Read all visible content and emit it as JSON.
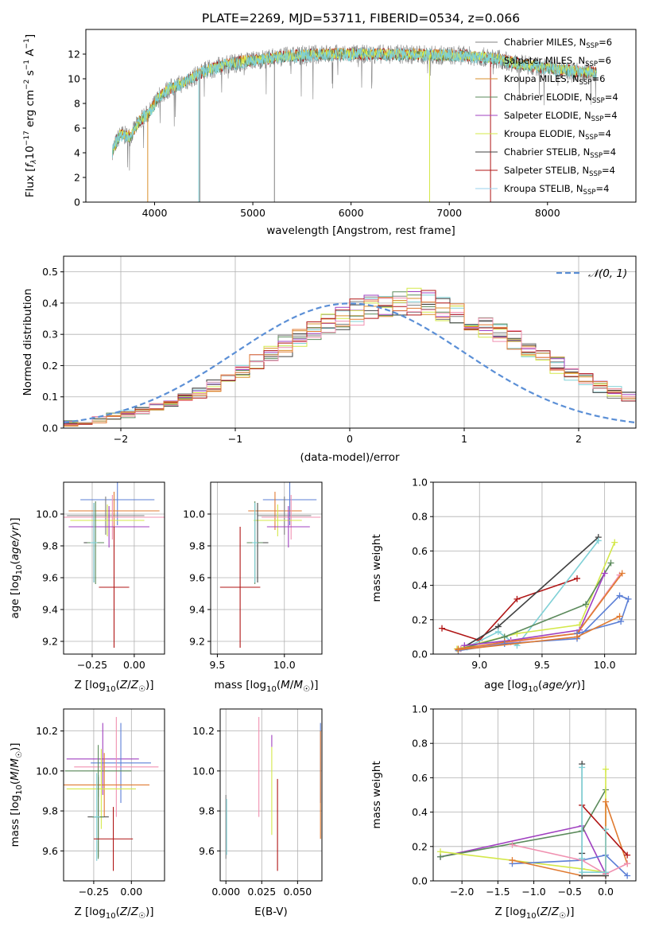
{
  "colors": {
    "chabrier_miles": "#808080",
    "salpeter_miles": "#7fd0d6",
    "kroupa_miles": "#d98f2b",
    "chabrier_elodie": "#5b8a5b",
    "salpeter_elodie": "#a040c0",
    "kroupa_elodie": "#d4e84a",
    "chabrier_stelib": "#404040",
    "salpeter_stelib": "#b01515",
    "kroupa_stelib": "#9ad0ee",
    "extra_blue": "#5b7fd6",
    "extra_pink": "#f090b0",
    "extra_orange": "#e07a30",
    "normal_curve": "#5b8fd6"
  },
  "chart_data": [
    {
      "id": "spectrum",
      "type": "line",
      "title": "PLATE=2269, MJD=53711, FIBERID=0534, z=0.066",
      "xlabel": "wavelength [Angstrom, rest frame]",
      "ylabel": "Flux [f_λ 10^-17 erg cm^-2 s^-1 A^-1]",
      "xlim": [
        3300,
        8900
      ],
      "ylim": [
        0,
        14
      ],
      "xticks": [
        "4000",
        "5000",
        "6000",
        "7000",
        "8000"
      ],
      "yticks": [
        "0",
        "2",
        "4",
        "6",
        "8",
        "10",
        "12"
      ],
      "grid": false,
      "legend_position": "top-right",
      "legend": [
        {
          "label": "Chabrier MILES, N",
          "sub": "SSP",
          "suffix": "=6"
        },
        {
          "label": "Salpeter MILES, N",
          "sub": "SSP",
          "suffix": "=6"
        },
        {
          "label": "Kroupa MILES, N",
          "sub": "SSP",
          "suffix": "=6"
        },
        {
          "label": "Chabrier ELODIE, N",
          "sub": "SSP",
          "suffix": "=4"
        },
        {
          "label": "Salpeter ELODIE, N",
          "sub": "SSP",
          "suffix": "=4"
        },
        {
          "label": "Kroupa ELODIE, N",
          "sub": "SSP",
          "suffix": "=4"
        },
        {
          "label": "Chabrier STELIB, N",
          "sub": "SSP",
          "suffix": "=4"
        },
        {
          "label": "Salpeter STELIB, N",
          "sub": "SSP",
          "suffix": "=4"
        },
        {
          "label": "Kroupa STELIB, N",
          "sub": "SSP",
          "suffix": "=4"
        }
      ],
      "continuum": {
        "x": [
          3570,
          3650,
          3750,
          3850,
          3950,
          4050,
          4150,
          4300,
          4500,
          4700,
          4900,
          5100,
          5300,
          5500,
          5700,
          5900,
          6100,
          6300,
          6500,
          6700,
          6900,
          7100,
          7300,
          7500,
          7700,
          7900,
          8100,
          8300,
          8500
        ],
        "y": [
          4.2,
          5.5,
          5.3,
          6.6,
          7.3,
          8.6,
          9.2,
          9.7,
          10.6,
          11.1,
          11.4,
          11.6,
          11.8,
          11.9,
          12.0,
          12.0,
          12.0,
          12.0,
          12.0,
          11.95,
          11.9,
          11.9,
          11.8,
          11.6,
          11.2,
          11.0,
          10.8,
          10.6,
          10.5
        ]
      }
    },
    {
      "id": "residuals",
      "type": "histogram",
      "xlabel": "(data-model)/error",
      "ylabel": "Normed distribution",
      "xlim": [
        -2.5,
        2.5
      ],
      "ylim": [
        0,
        0.55
      ],
      "xticks": [
        "−2",
        "−1",
        "0",
        "1",
        "2"
      ],
      "yticks": [
        "0.0",
        "0.1",
        "0.2",
        "0.3",
        "0.4",
        "0.5"
      ],
      "grid": true,
      "legend_position": "top-right",
      "legend": [
        {
          "label": "𝒩(0, 1)"
        }
      ],
      "bin_width": 0.125,
      "bin_start": -2.5,
      "base_values": [
        0.018,
        0.022,
        0.028,
        0.036,
        0.045,
        0.056,
        0.068,
        0.082,
        0.098,
        0.117,
        0.137,
        0.16,
        0.185,
        0.21,
        0.236,
        0.262,
        0.288,
        0.313,
        0.336,
        0.356,
        0.373,
        0.386,
        0.395,
        0.399,
        0.398,
        0.393,
        0.383,
        0.368,
        0.35,
        0.328,
        0.305,
        0.28,
        0.254,
        0.228,
        0.203,
        0.179,
        0.156,
        0.135,
        0.116,
        0.099,
        0.084,
        0.071,
        0.059,
        0.049,
        0.04,
        0.033,
        0.027,
        0.022,
        0.018,
        0.015
      ],
      "normal": {
        "mean": 0,
        "sd": 1
      }
    },
    {
      "id": "age_vs_Z",
      "type": "errorbar",
      "xlabel": "Z [log10(Z/Z☉)]",
      "ylabel": "age [log10(age/yr)]",
      "xlim": [
        -0.42,
        0.18
      ],
      "ylim": [
        9.12,
        10.2
      ],
      "xticks": [
        "−0.25",
        "0.00"
      ],
      "yticks": [
        "9.2",
        "9.4",
        "9.6",
        "9.8",
        "10.0"
      ],
      "grid": true,
      "points": [
        {
          "x": -0.1,
          "y": 10.09,
          "xerr": 0.22,
          "yerr": 0.16,
          "color": "extra_blue"
        },
        {
          "x": -0.12,
          "y": 10.02,
          "xerr": 0.27,
          "yerr": 0.12,
          "color": "extra_orange"
        },
        {
          "x": -0.17,
          "y": 9.99,
          "xerr": 0.23,
          "yerr": 0.12,
          "color": "chabrier_miles"
        },
        {
          "x": -0.13,
          "y": 9.98,
          "xerr": 0.32,
          "yerr": 0.14,
          "color": "extra_pink"
        },
        {
          "x": -0.16,
          "y": 9.96,
          "xerr": 0.22,
          "yerr": 0.1,
          "color": "kroupa_elodie"
        },
        {
          "x": -0.15,
          "y": 9.92,
          "xerr": 0.24,
          "yerr": 0.13,
          "color": "salpeter_elodie"
        },
        {
          "x": -0.24,
          "y": 9.82,
          "xerr": 0.06,
          "yerr": 0.25,
          "color": "chabrier_stelib"
        },
        {
          "x": -0.23,
          "y": 9.82,
          "xerr": 0.05,
          "yerr": 0.26,
          "color": "chabrier_elodie"
        },
        {
          "x": -0.24,
          "y": 9.82,
          "xerr": 0.02,
          "yerr": 0.25,
          "color": "salpeter_miles"
        },
        {
          "x": -0.12,
          "y": 9.54,
          "xerr": 0.09,
          "yerr": 0.38,
          "color": "salpeter_stelib"
        }
      ]
    },
    {
      "id": "age_vs_mass",
      "type": "errorbar",
      "xlabel": "mass [log10(M/M☉)]",
      "ylabel": "",
      "xlim": [
        9.45,
        10.28
      ],
      "ylim": [
        9.12,
        10.2
      ],
      "xticks": [
        "9.5",
        "10.0"
      ],
      "yticks": [
        "9.2",
        "9.4",
        "9.6",
        "9.8",
        "10.0"
      ],
      "grid": true,
      "points": [
        {
          "x": 10.04,
          "y": 10.09,
          "xerr": 0.2,
          "yerr": 0.16,
          "color": "extra_blue"
        },
        {
          "x": 9.93,
          "y": 10.02,
          "xerr": 0.2,
          "yerr": 0.12,
          "color": "extra_orange"
        },
        {
          "x": 10.0,
          "y": 9.99,
          "xerr": 0.2,
          "yerr": 0.12,
          "color": "chabrier_miles"
        },
        {
          "x": 10.05,
          "y": 9.98,
          "xerr": 0.22,
          "yerr": 0.14,
          "color": "extra_pink"
        },
        {
          "x": 9.95,
          "y": 9.96,
          "xerr": 0.18,
          "yerr": 0.1,
          "color": "kroupa_elodie"
        },
        {
          "x": 10.03,
          "y": 9.92,
          "xerr": 0.16,
          "yerr": 0.13,
          "color": "salpeter_elodie"
        },
        {
          "x": 9.8,
          "y": 9.82,
          "xerr": 0.08,
          "yerr": 0.25,
          "color": "chabrier_stelib"
        },
        {
          "x": 9.78,
          "y": 9.82,
          "xerr": 0.06,
          "yerr": 0.26,
          "color": "chabrier_elodie"
        },
        {
          "x": 9.78,
          "y": 9.82,
          "xerr": 0.02,
          "yerr": 0.25,
          "color": "salpeter_miles"
        },
        {
          "x": 9.67,
          "y": 9.54,
          "xerr": 0.15,
          "yerr": 0.38,
          "color": "salpeter_stelib"
        }
      ]
    },
    {
      "id": "weight_vs_age",
      "type": "line",
      "xlabel": "age [log10(age/yr)]",
      "ylabel": "mass weight",
      "xlim": [
        8.63,
        10.25
      ],
      "ylim": [
        0,
        1
      ],
      "xticks": [
        "9.0",
        "9.5",
        "10.0"
      ],
      "yticks": [
        "0.0",
        "0.2",
        "0.4",
        "0.6",
        "0.8",
        "1.0"
      ],
      "grid": true,
      "series": [
        {
          "color": "salpeter_stelib",
          "x": [
            8.7,
            9.0,
            9.3,
            9.78
          ],
          "y": [
            0.15,
            0.08,
            0.32,
            0.44
          ]
        },
        {
          "color": "chabrier_stelib",
          "x": [
            8.85,
            9.15,
            9.95
          ],
          "y": [
            0.03,
            0.16,
            0.68
          ]
        },
        {
          "color": "salpeter_miles",
          "x": [
            8.9,
            9.15,
            9.3,
            9.95
          ],
          "y": [
            0.04,
            0.13,
            0.05,
            0.66
          ]
        },
        {
          "color": "kroupa_elodie",
          "x": [
            8.82,
            9.3,
            9.8,
            10.08
          ],
          "y": [
            0.03,
            0.12,
            0.17,
            0.65
          ]
        },
        {
          "color": "chabrier_elodie",
          "x": [
            8.85,
            9.2,
            9.85,
            10.05
          ],
          "y": [
            0.03,
            0.1,
            0.29,
            0.53
          ]
        },
        {
          "color": "salpeter_elodie",
          "x": [
            8.88,
            9.25,
            9.8,
            10.0
          ],
          "y": [
            0.05,
            0.08,
            0.14,
            0.47
          ]
        },
        {
          "color": "extra_pink",
          "x": [
            8.85,
            9.25,
            9.78,
            10.12
          ],
          "y": [
            0.03,
            0.07,
            0.12,
            0.46
          ]
        },
        {
          "color": "extra_orange",
          "x": [
            8.83,
            9.2,
            9.78,
            10.14
          ],
          "y": [
            0.03,
            0.07,
            0.12,
            0.47
          ]
        },
        {
          "color": "extra_blue",
          "x": [
            8.83,
            9.2,
            9.78,
            10.12,
            10.19,
            10.13,
            9.78
          ],
          "y": [
            0.02,
            0.06,
            0.09,
            0.34,
            0.32,
            0.19,
            0.12
          ]
        },
        {
          "color": "extra_orange",
          "x": [
            8.83,
            9.78,
            10.12
          ],
          "y": [
            0.025,
            0.1,
            0.22
          ]
        }
      ]
    },
    {
      "id": "mass_vs_Z",
      "type": "errorbar",
      "xlabel": "Z [log10(Z/Z☉)]",
      "ylabel": "mass [log10(M/M☉)]",
      "xlim": [
        -0.45,
        0.22
      ],
      "ylim": [
        9.45,
        10.31
      ],
      "xticks": [
        "−0.25",
        "0.00"
      ],
      "yticks": [
        "9.6",
        "9.8",
        "10.0",
        "10.2"
      ],
      "grid": true,
      "points": [
        {
          "x": -0.19,
          "y": 10.06,
          "xerr": 0.24,
          "yerr": 0.18,
          "color": "salpeter_elodie"
        },
        {
          "x": -0.07,
          "y": 10.04,
          "xerr": 0.2,
          "yerr": 0.2,
          "color": "extra_blue"
        },
        {
          "x": -0.1,
          "y": 10.02,
          "xerr": 0.28,
          "yerr": 0.25,
          "color": "extra_pink"
        },
        {
          "x": -0.22,
          "y": 10.0,
          "xerr": 0.22,
          "yerr": 0.13,
          "color": "chabrier_elodie"
        },
        {
          "x": -0.18,
          "y": 9.93,
          "xerr": 0.3,
          "yerr": 0.16,
          "color": "extra_orange"
        },
        {
          "x": -0.2,
          "y": 9.91,
          "xerr": 0.23,
          "yerr": 0.2,
          "color": "kroupa_elodie"
        },
        {
          "x": -0.22,
          "y": 9.77,
          "xerr": 0.07,
          "yerr": 0.2,
          "color": "chabrier_stelib"
        },
        {
          "x": -0.22,
          "y": 9.77,
          "xerr": 0.04,
          "yerr": 0.21,
          "color": "chabrier_elodie"
        },
        {
          "x": -0.23,
          "y": 9.77,
          "xerr": 0.02,
          "yerr": 0.22,
          "color": "salpeter_miles"
        },
        {
          "x": -0.12,
          "y": 9.66,
          "xerr": 0.13,
          "yerr": 0.16,
          "color": "salpeter_stelib"
        }
      ]
    },
    {
      "id": "mass_vs_ebv",
      "type": "errorbar",
      "xlabel": "E(B-V)",
      "ylabel": "",
      "xlim": [
        -0.004,
        0.067
      ],
      "ylim": [
        9.45,
        10.31
      ],
      "xticks": [
        "0.000",
        "0.025",
        "0.050"
      ],
      "yticks": [
        "9.6",
        "9.8",
        "10.0",
        "10.2"
      ],
      "grid": true,
      "points": [
        {
          "x": 0.0,
          "y": 9.72,
          "xerr": 0,
          "yerr": 0.16,
          "color": "chabrier_miles"
        },
        {
          "x": 0.0005,
          "y": 9.72,
          "xerr": 0,
          "yerr": 0.14,
          "color": "salpeter_miles"
        },
        {
          "x": 0.023,
          "y": 10.02,
          "xerr": 0,
          "yerr": 0.25,
          "color": "extra_pink"
        },
        {
          "x": 0.032,
          "y": 10.15,
          "xerr": 0,
          "yerr": 0.03,
          "color": "salpeter_elodie"
        },
        {
          "x": 0.032,
          "y": 9.9,
          "xerr": 0,
          "yerr": 0.22,
          "color": "kroupa_elodie"
        },
        {
          "x": 0.036,
          "y": 9.73,
          "xerr": 0,
          "yerr": 0.23,
          "color": "salpeter_stelib"
        },
        {
          "x": 0.066,
          "y": 10.04,
          "xerr": 0,
          "yerr": 0.2,
          "color": "extra_blue"
        },
        {
          "x": 0.066,
          "y": 9.93,
          "xerr": 0,
          "yerr": 0.27,
          "color": "extra_orange"
        }
      ]
    },
    {
      "id": "weight_vs_Z",
      "type": "line",
      "xlabel": "Z [log10(Z/Z☉)]",
      "ylabel": "mass weight",
      "xlim": [
        -2.4,
        0.42
      ],
      "ylim": [
        0,
        1
      ],
      "xticks": [
        "−2.0",
        "−1.5",
        "−1.0",
        "−0.5",
        "0.0"
      ],
      "yticks": [
        "0.0",
        "0.2",
        "0.4",
        "0.6",
        "0.8",
        "1.0"
      ],
      "grid": true,
      "series": [
        {
          "color": "salpeter_elodie",
          "x": [
            -2.3,
            -0.33,
            0.0
          ],
          "y": [
            0.14,
            0.32,
            0.04
          ]
        },
        {
          "color": "chabrier_elodie",
          "x": [
            -2.3,
            -0.33,
            0.0
          ],
          "y": [
            0.14,
            0.29,
            0.53
          ]
        },
        {
          "color": "kroupa_elodie",
          "x": [
            -2.3,
            -0.33,
            0.0,
            0.0
          ],
          "y": [
            0.17,
            0.07,
            0.05,
            0.65
          ]
        },
        {
          "color": "extra_blue",
          "x": [
            -1.3,
            -0.33,
            0.0,
            0.3
          ],
          "y": [
            0.1,
            0.12,
            0.15,
            0.03
          ]
        },
        {
          "color": "extra_orange",
          "x": [
            -1.3,
            -0.33,
            0.0,
            0.0,
            0.3
          ],
          "y": [
            0.12,
            0.03,
            0.03,
            0.46,
            0.1
          ]
        },
        {
          "color": "extra_pink",
          "x": [
            -1.3,
            -0.33,
            0.0,
            0.3
          ],
          "y": [
            0.21,
            0.12,
            0.04,
            0.1
          ]
        },
        {
          "color": "salpeter_stelib",
          "x": [
            -0.33,
            0.3
          ],
          "y": [
            0.44,
            0.15
          ]
        },
        {
          "color": "chabrier_stelib",
          "x": [
            -0.33,
            -0.33,
            -0.33,
            0.0
          ],
          "y": [
            0.68,
            0.16,
            0.03,
            0.03
          ]
        },
        {
          "color": "salpeter_miles",
          "x": [
            -0.33,
            -0.33,
            -0.33,
            0.0,
            0.0
          ],
          "y": [
            0.66,
            0.13,
            0.05,
            0.05,
            0.3
          ]
        }
      ]
    }
  ]
}
